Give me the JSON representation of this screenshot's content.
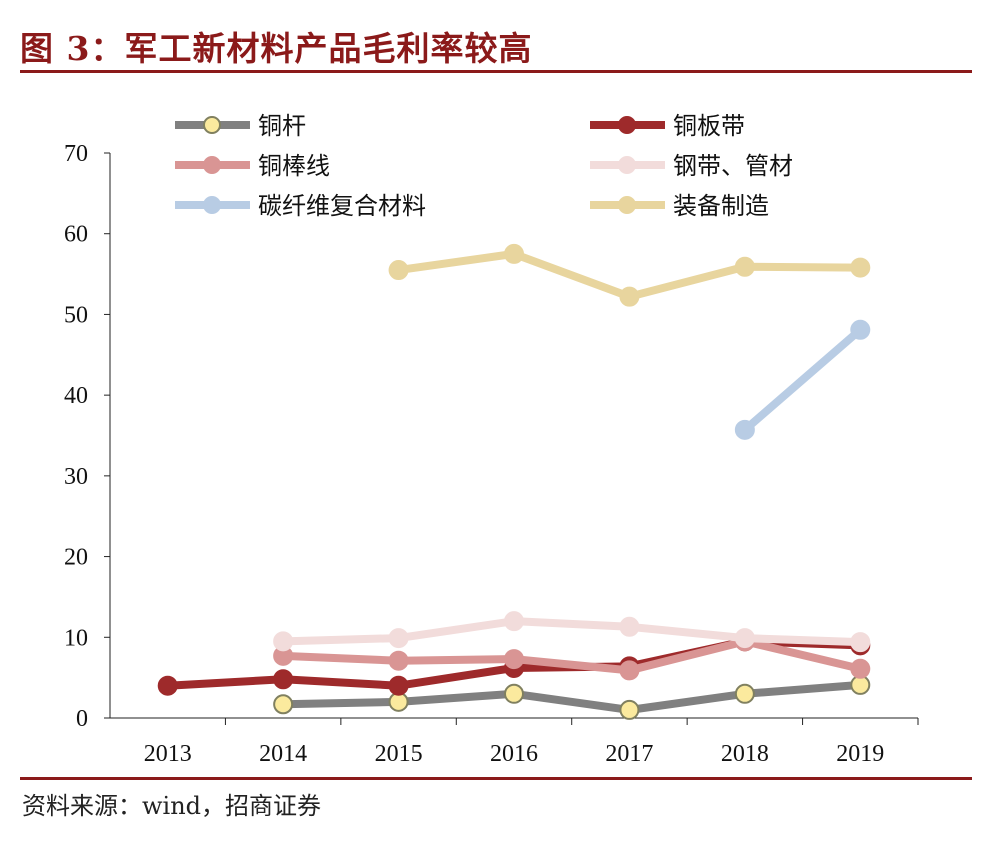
{
  "title": "图 3：军工新材料产品毛利率较高",
  "source": "资料来源：wind，招商证券",
  "chart_data": {
    "type": "line",
    "title": "图 3：军工新材料产品毛利率较高",
    "xlabel": "",
    "ylabel": "",
    "categories": [
      "2013",
      "2014",
      "2015",
      "2016",
      "2017",
      "2018",
      "2019"
    ],
    "ylim": [
      0,
      70
    ],
    "yticks": [
      "0",
      "10",
      "20",
      "30",
      "40",
      "50",
      "60",
      "70"
    ],
    "grid": false,
    "legend_position": "top",
    "series": [
      {
        "name": "铜杆",
        "color": "#808080",
        "marker_fill": "#FBEA9E",
        "marker_stroke": "#808060",
        "values": [
          null,
          1.7,
          2.0,
          3.0,
          1.0,
          3.0,
          4.1
        ]
      },
      {
        "name": "铜板带",
        "color": "#9E2A2B",
        "marker_fill": "#9E2A2B",
        "values": [
          4.0,
          4.8,
          4.0,
          6.2,
          6.4,
          9.5,
          9.0
        ]
      },
      {
        "name": "铜棒线",
        "color": "#D99594",
        "marker_fill": "#D99594",
        "values": [
          null,
          7.7,
          7.1,
          7.3,
          5.9,
          9.5,
          6.1
        ]
      },
      {
        "name": "钢带、管材",
        "color": "#F2DCDB",
        "marker_fill": "#F2DCDB",
        "values": [
          null,
          9.5,
          9.9,
          12.0,
          11.3,
          9.9,
          9.4
        ]
      },
      {
        "name": "碳纤维复合材料",
        "color": "#B8CCE4",
        "marker_fill": "#B8CCE4",
        "values": [
          null,
          null,
          null,
          null,
          null,
          35.7,
          48.1
        ]
      },
      {
        "name": "装备制造",
        "color": "#E8D59E",
        "marker_fill": "#E8D59E",
        "values": [
          null,
          null,
          55.5,
          57.5,
          52.2,
          55.9,
          55.8
        ]
      }
    ]
  }
}
